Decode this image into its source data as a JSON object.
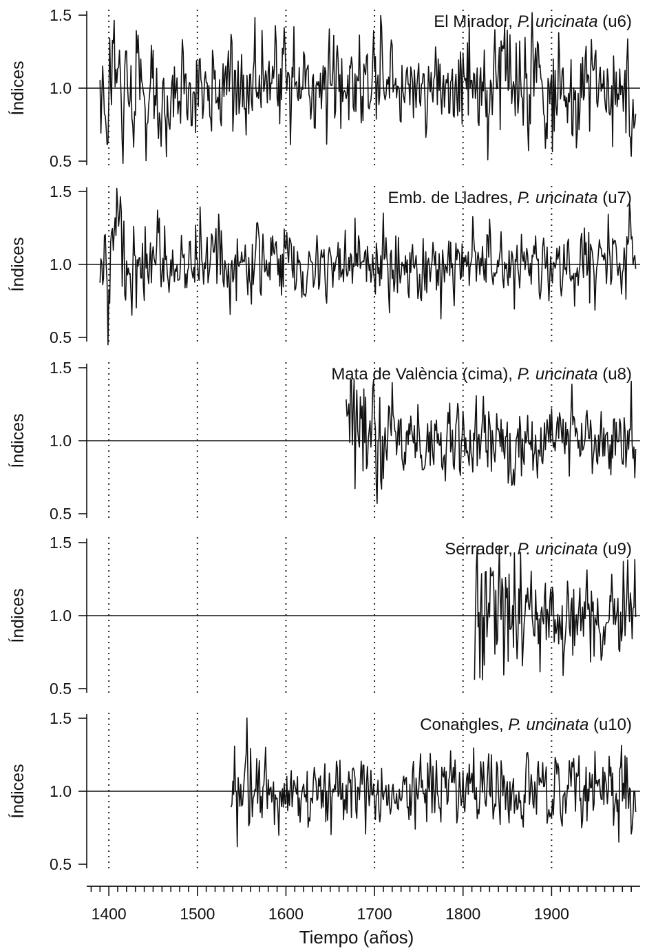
{
  "chart_data": {
    "type": "line",
    "xlabel": "Tiempo (años)",
    "xlim": [
      1375,
      2000
    ],
    "xticks": [
      "1400",
      "1500",
      "1600",
      "1700",
      "1800",
      "1900"
    ],
    "ylim": [
      0.5,
      1.5
    ],
    "yticks": [
      "0.5",
      "1.0",
      "1.5"
    ],
    "gridlines_x": [
      1400,
      1500,
      1600,
      1700,
      1800,
      1900
    ],
    "grid_style": "dotted vertical lines",
    "reference_line": 1.0,
    "line_color": "#111111",
    "panels": [
      {
        "title_prefix": "El Mirador, ",
        "species": "P. uncinata",
        "code": " (u6)",
        "ylabel": "Índices",
        "series_start": 1390,
        "series_end": 1995,
        "amplitude": 0.17,
        "visible_range": [
          0.47,
          1.55
        ]
      },
      {
        "title_prefix": "Emb. de Lladres, ",
        "species": "P. uncinata",
        "code": " (u7)",
        "ylabel": "Índices",
        "series_start": 1390,
        "series_end": 1995,
        "amplitude": 0.13,
        "visible_range": [
          0.45,
          1.55
        ]
      },
      {
        "title_prefix": "Mata de València (cima), ",
        "species": "P. uncinata",
        "code": " (u8)",
        "ylabel": "Índices",
        "series_start": 1668,
        "series_end": 1995,
        "amplitude": 0.13,
        "visible_range": [
          0.57,
          1.42
        ]
      },
      {
        "title_prefix": "Serrader, ",
        "species": "P. uncinata",
        "code": " (u9)",
        "ylabel": "Índices",
        "series_start": 1813,
        "series_end": 1995,
        "amplitude": 0.17,
        "visible_range": [
          0.56,
          1.47
        ]
      },
      {
        "title_prefix": "Conangles, ",
        "species": "P. uncinata",
        "code": " (u10)",
        "ylabel": "Índices",
        "series_start": 1538,
        "series_end": 1995,
        "amplitude": 0.12,
        "visible_range": [
          0.62,
          1.55
        ]
      }
    ]
  }
}
